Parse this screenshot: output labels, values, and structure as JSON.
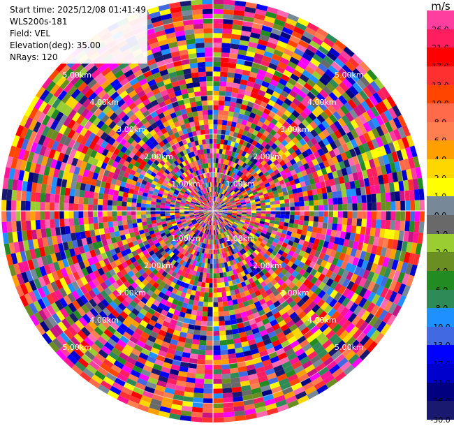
{
  "header": {
    "start_time": "Start time: 2025/12/08 01:41:49",
    "instrument": "WLS200s-181",
    "field": "Field: VEL",
    "elevation": "Elevation(deg): 35.00",
    "nrays": "NRays: 120"
  },
  "colorbar": {
    "unit": "m/s",
    "bins": [
      {
        "label": "26.0",
        "color": "#ff3fa0"
      },
      {
        "label": "21.0",
        "color": "#ff1f60"
      },
      {
        "label": "17.0",
        "color": "#ff0000"
      },
      {
        "label": "13.0",
        "color": "#ff3030"
      },
      {
        "label": "10.0",
        "color": "#ff4500"
      },
      {
        "label": "8.0",
        "color": "#ff6a4a"
      },
      {
        "label": "6.0",
        "color": "#ff7f50"
      },
      {
        "label": "4.0",
        "color": "#ff9f00"
      },
      {
        "label": "2.0",
        "color": "#ffd700"
      },
      {
        "label": "1.0",
        "color": "#ffff00"
      },
      {
        "label": "0.0",
        "color": "#778899"
      },
      {
        "label": "-1.0",
        "color": "#696969"
      },
      {
        "label": "-2.0",
        "color": "#9acd32"
      },
      {
        "label": "-4.0",
        "color": "#6b8e23"
      },
      {
        "label": "-6.0",
        "color": "#228b22"
      },
      {
        "label": "-8.0",
        "color": "#2e8b57"
      },
      {
        "label": "-10.0",
        "color": "#1e90ff"
      },
      {
        "label": "-13.0",
        "color": "#4169e1"
      },
      {
        "label": "-17.0",
        "color": "#0000ff"
      },
      {
        "label": "-21.0",
        "color": "#0000cd"
      },
      {
        "label": "-26.0",
        "color": "#000080"
      },
      {
        "label": "-30.0",
        "color": "#191970"
      }
    ]
  },
  "range_rings": [
    "1.00km",
    "2.00km",
    "3.00km",
    "4.00km",
    "5.00km"
  ],
  "scan": {
    "nrays": 120,
    "ngates": 44
  }
}
